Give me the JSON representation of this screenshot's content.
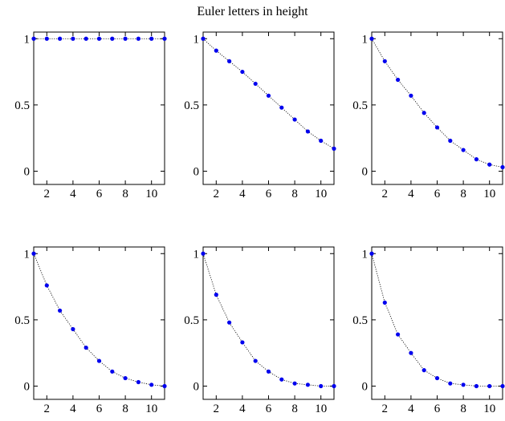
{
  "figure_title": "Euler letters in height",
  "chart_data": [
    {
      "type": "line",
      "x": [
        1,
        2,
        3,
        4,
        5,
        6,
        7,
        8,
        9,
        10,
        11
      ],
      "series": [
        {
          "values": [
            1,
            1,
            1,
            1,
            1,
            1,
            1,
            1,
            1,
            1,
            1
          ]
        }
      ],
      "xlim": [
        1,
        11
      ],
      "ylim": [
        -0.1,
        1.05
      ],
      "xticks": [
        2,
        4,
        6,
        8,
        10
      ],
      "yticks": [
        0,
        0.5,
        1
      ],
      "grid": false,
      "color": "#0000ee"
    },
    {
      "type": "line",
      "x": [
        1,
        2,
        3,
        4,
        5,
        6,
        7,
        8,
        9,
        10,
        11
      ],
      "series": [
        {
          "values": [
            1,
            0.91,
            0.83,
            0.75,
            0.66,
            0.57,
            0.48,
            0.39,
            0.3,
            0.23,
            0.17
          ]
        }
      ],
      "xlim": [
        1,
        11
      ],
      "ylim": [
        -0.1,
        1.05
      ],
      "xticks": [
        2,
        4,
        6,
        8,
        10
      ],
      "yticks": [
        0,
        0.5,
        1
      ],
      "grid": false,
      "color": "#0000ee"
    },
    {
      "type": "line",
      "x": [
        1,
        2,
        3,
        4,
        5,
        6,
        7,
        8,
        9,
        10,
        11
      ],
      "series": [
        {
          "values": [
            1,
            0.83,
            0.69,
            0.57,
            0.44,
            0.33,
            0.23,
            0.16,
            0.09,
            0.05,
            0.03
          ]
        }
      ],
      "xlim": [
        1,
        11
      ],
      "ylim": [
        -0.1,
        1.05
      ],
      "xticks": [
        2,
        4,
        6,
        8,
        10
      ],
      "yticks": [
        0,
        0.5,
        1
      ],
      "grid": false,
      "color": "#0000ee"
    },
    {
      "type": "line",
      "x": [
        1,
        2,
        3,
        4,
        5,
        6,
        7,
        8,
        9,
        10,
        11
      ],
      "series": [
        {
          "values": [
            1,
            0.76,
            0.57,
            0.43,
            0.29,
            0.19,
            0.11,
            0.06,
            0.03,
            0.01,
            0.0
          ]
        }
      ],
      "xlim": [
        1,
        11
      ],
      "ylim": [
        -0.1,
        1.05
      ],
      "xticks": [
        2,
        4,
        6,
        8,
        10
      ],
      "yticks": [
        0,
        0.5,
        1
      ],
      "grid": false,
      "color": "#0000ee"
    },
    {
      "type": "line",
      "x": [
        1,
        2,
        3,
        4,
        5,
        6,
        7,
        8,
        9,
        10,
        11
      ],
      "series": [
        {
          "values": [
            1,
            0.69,
            0.48,
            0.33,
            0.19,
            0.11,
            0.05,
            0.02,
            0.01,
            0.0,
            0.0
          ]
        }
      ],
      "xlim": [
        1,
        11
      ],
      "ylim": [
        -0.1,
        1.05
      ],
      "xticks": [
        2,
        4,
        6,
        8,
        10
      ],
      "yticks": [
        0,
        0.5,
        1
      ],
      "grid": false,
      "color": "#0000ee"
    },
    {
      "type": "line",
      "x": [
        1,
        2,
        3,
        4,
        5,
        6,
        7,
        8,
        9,
        10,
        11
      ],
      "series": [
        {
          "values": [
            1,
            0.63,
            0.39,
            0.25,
            0.12,
            0.06,
            0.02,
            0.01,
            0.0,
            0.0,
            0.0
          ]
        }
      ],
      "xlim": [
        1,
        11
      ],
      "ylim": [
        -0.1,
        1.05
      ],
      "xticks": [
        2,
        4,
        6,
        8,
        10
      ],
      "yticks": [
        0,
        0.5,
        1
      ],
      "grid": false,
      "color": "#0000ee"
    }
  ]
}
